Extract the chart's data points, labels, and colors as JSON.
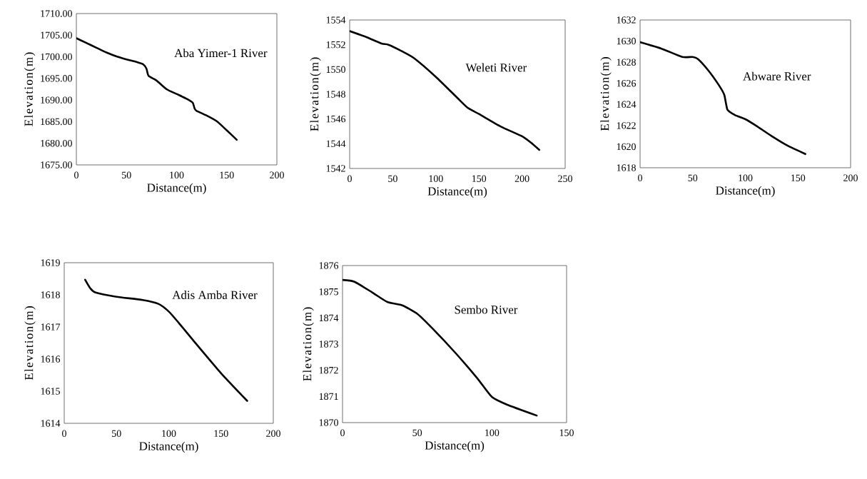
{
  "chart_data": [
    {
      "type": "line",
      "title": "Aba Yimer-1 River",
      "xlabel": "Distance(m)",
      "ylabel": "Elevation(m)",
      "xlim": [
        0,
        200
      ],
      "xticks": [
        0,
        50,
        100,
        150,
        200
      ],
      "ylim": [
        1675,
        1710
      ],
      "yticks": [
        {
          "value": 1675,
          "label": "1675.00"
        },
        {
          "value": 1680,
          "label": "1680.00"
        },
        {
          "value": 1685,
          "label": "1685.00"
        },
        {
          "value": 1690,
          "label": "1690.00"
        },
        {
          "value": 1695,
          "label": "1695.00"
        },
        {
          "value": 1700,
          "label": "1700.00"
        },
        {
          "value": 1705,
          "label": "1705.00"
        },
        {
          "value": 1710,
          "label": "1710.00"
        }
      ],
      "series": [
        {
          "color": "#000000",
          "x": [
            0,
            10,
            20,
            30,
            40,
            50,
            60,
            67,
            70,
            72,
            80,
            90,
            100,
            110,
            116,
            118,
            120,
            130,
            140,
            150,
            160
          ],
          "values": [
            1704.3,
            1703.2,
            1702.1,
            1701.0,
            1700.1,
            1699.4,
            1698.8,
            1698.2,
            1697.2,
            1695.6,
            1694.5,
            1692.5,
            1691.4,
            1690.3,
            1689.4,
            1688.0,
            1687.5,
            1686.4,
            1685.1,
            1683.0,
            1680.8
          ]
        }
      ]
    },
    {
      "type": "line",
      "title": "Weleti River",
      "xlabel": "Distance(m)",
      "ylabel": "Elevation(m)",
      "xlim": [
        0,
        250
      ],
      "xticks": [
        0,
        50,
        100,
        150,
        200,
        250
      ],
      "ylim": [
        1542,
        1554
      ],
      "yticks": [
        1542,
        1544,
        1546,
        1548,
        1550,
        1552,
        1554
      ],
      "series": [
        {
          "color": "#000000",
          "x": [
            0,
            20,
            37,
            45,
            60,
            75,
            100,
            125,
            137,
            150,
            175,
            200,
            210,
            220
          ],
          "values": [
            1553.1,
            1552.6,
            1552.1,
            1552.0,
            1551.5,
            1550.9,
            1549.4,
            1547.7,
            1546.9,
            1546.4,
            1545.4,
            1544.6,
            1544.1,
            1543.5
          ]
        }
      ]
    },
    {
      "type": "line",
      "title": "Abware River",
      "xlabel": "Distance(m)",
      "ylabel": "Elevation(m)",
      "xlim": [
        0,
        200
      ],
      "xticks": [
        0,
        50,
        100,
        150,
        200
      ],
      "ylim": [
        1618,
        1632
      ],
      "yticks": [
        1618,
        1620,
        1622,
        1624,
        1626,
        1628,
        1630,
        1632
      ],
      "series": [
        {
          "color": "#000000",
          "x": [
            0,
            20,
            40,
            50,
            55,
            65,
            75,
            80,
            83,
            90,
            100,
            110,
            125,
            140,
            157
          ],
          "values": [
            1629.9,
            1629.3,
            1628.5,
            1628.5,
            1628.3,
            1627.2,
            1625.8,
            1624.9,
            1623.5,
            1623.0,
            1622.6,
            1622.0,
            1621.0,
            1620.1,
            1619.3
          ]
        }
      ]
    },
    {
      "type": "line",
      "title": "Adis Amba River",
      "xlabel": "Distance(m)",
      "ylabel": "Elevation(m)",
      "xlim": [
        0,
        200
      ],
      "xticks": [
        0,
        50,
        100,
        150,
        200
      ],
      "ylim": [
        1614,
        1619
      ],
      "yticks": [
        1614,
        1615,
        1616,
        1617,
        1618,
        1619
      ],
      "series": [
        {
          "color": "#000000",
          "x": [
            20,
            25,
            30,
            50,
            75,
            90,
            100,
            110,
            125,
            150,
            175
          ],
          "values": [
            1618.47,
            1618.2,
            1618.07,
            1617.94,
            1617.84,
            1617.72,
            1617.48,
            1617.11,
            1616.52,
            1615.56,
            1614.7
          ]
        }
      ]
    },
    {
      "type": "line",
      "title": "Sembo River",
      "xlabel": "Distance(m)",
      "ylabel": "Elevation(m)",
      "xlim": [
        0,
        150
      ],
      "xticks": [
        0,
        50,
        100,
        150
      ],
      "ylim": [
        1870,
        1876
      ],
      "yticks": [
        1870,
        1871,
        1872,
        1873,
        1874,
        1875,
        1876
      ],
      "series": [
        {
          "color": "#000000",
          "x": [
            0,
            8,
            20,
            30,
            40,
            50,
            60,
            75,
            90,
            100,
            110,
            130
          ],
          "values": [
            1875.45,
            1875.38,
            1874.97,
            1874.61,
            1874.48,
            1874.16,
            1873.61,
            1872.7,
            1871.71,
            1870.98,
            1870.69,
            1870.27
          ]
        }
      ]
    }
  ]
}
